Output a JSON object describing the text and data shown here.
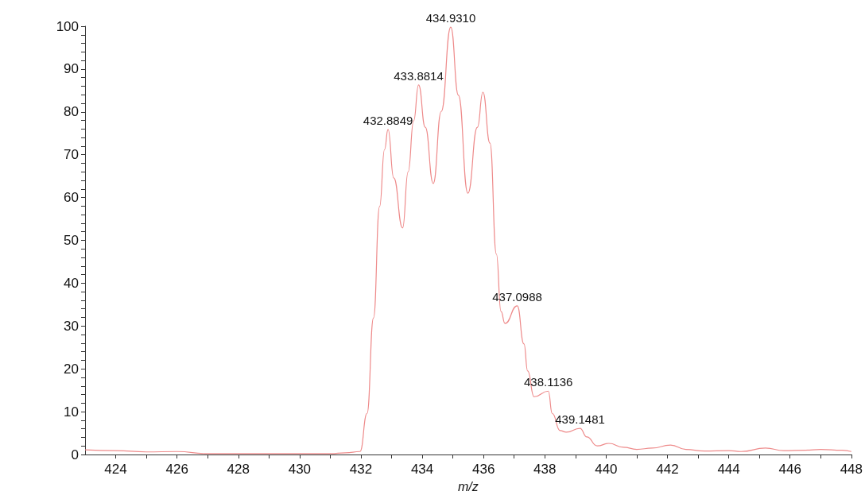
{
  "chart_data": {
    "type": "line",
    "xlabel": "m/z",
    "color": "#ee8a8a",
    "marker": "none",
    "line_style": "solid",
    "x": [
      423,
      424,
      425,
      426,
      427,
      428,
      429,
      430,
      431,
      431.5,
      431.97,
      432.2,
      432.41,
      432.61,
      432.77,
      432.8849,
      433.07,
      433.36,
      433.54,
      433.72,
      433.8814,
      434.1,
      434.36,
      434.62,
      434.931,
      435.18,
      435.49,
      435.8,
      435.98,
      436.21,
      436.42,
      436.57,
      436.7,
      437.0988,
      437.32,
      437.44,
      437.65,
      438.1136,
      438.24,
      438.5,
      438.7,
      439.1481,
      439.37,
      439.71,
      440.09,
      440.56,
      441,
      441.5,
      442.1,
      442.6,
      443.2,
      444,
      444.4,
      445.2,
      445.8,
      446.5,
      447,
      447.7,
      448
    ],
    "values": [
      1.1,
      0.9,
      0.6,
      0.7,
      0.2,
      0.2,
      0.2,
      0.2,
      0.2,
      0.4,
      0.7,
      9.6,
      31.9,
      57.9,
      71.2,
      75.9,
      64.6,
      52.9,
      66,
      77.9,
      86.3,
      76.4,
      63.3,
      80.1,
      99.8,
      83.9,
      61,
      76.4,
      84.6,
      72.7,
      46.8,
      33.4,
      30.6,
      34.7,
      25.8,
      19.5,
      13.5,
      14.8,
      9.6,
      5.6,
      5.2,
      6.1,
      4.1,
      2,
      2.6,
      1.7,
      1.2,
      1.5,
      2.2,
      1.2,
      0.8,
      0.9,
      0.7,
      1.5,
      0.9,
      1,
      1.2,
      1,
      0.7
    ],
    "xlim": [
      423,
      448
    ],
    "xticks": [
      424,
      {
        "value": 425,
        "label": null
      },
      426,
      {
        "value": 427,
        "label": null
      },
      428,
      {
        "value": 429,
        "label": null
      },
      430,
      {
        "value": 431,
        "label": null
      },
      432,
      {
        "value": 433,
        "label": null
      },
      434,
      {
        "value": 435,
        "label": null
      },
      436,
      {
        "value": 437,
        "label": null
      },
      438,
      {
        "value": 439,
        "label": null
      },
      440,
      {
        "value": 441,
        "label": null
      },
      442,
      {
        "value": 443,
        "label": null
      },
      444,
      {
        "value": 445,
        "label": null
      },
      446,
      {
        "value": 447,
        "label": null
      },
      448
    ],
    "ylim": [
      0,
      100
    ],
    "yticks": [
      0,
      {
        "value": 2,
        "label": null
      },
      {
        "value": 4,
        "label": null
      },
      {
        "value": 6,
        "label": null
      },
      {
        "value": 8,
        "label": null
      },
      10,
      {
        "value": 12,
        "label": null
      },
      {
        "value": 14,
        "label": null
      },
      {
        "value": 16,
        "label": null
      },
      {
        "value": 18,
        "label": null
      },
      20,
      {
        "value": 22,
        "label": null
      },
      {
        "value": 24,
        "label": null
      },
      {
        "value": 26,
        "label": null
      },
      {
        "value": 28,
        "label": null
      },
      30,
      {
        "value": 32,
        "label": null
      },
      {
        "value": 34,
        "label": null
      },
      {
        "value": 36,
        "label": null
      },
      {
        "value": 38,
        "label": null
      },
      40,
      {
        "value": 42,
        "label": null
      },
      {
        "value": 44,
        "label": null
      },
      {
        "value": 46,
        "label": null
      },
      {
        "value": 48,
        "label": null
      },
      50,
      {
        "value": 52,
        "label": null
      },
      {
        "value": 54,
        "label": null
      },
      {
        "value": 56,
        "label": null
      },
      {
        "value": 58,
        "label": null
      },
      60,
      {
        "value": 62,
        "label": null
      },
      {
        "value": 64,
        "label": null
      },
      {
        "value": 66,
        "label": null
      },
      {
        "value": 68,
        "label": null
      },
      70,
      {
        "value": 72,
        "label": null
      },
      {
        "value": 74,
        "label": null
      },
      {
        "value": 76,
        "label": null
      },
      {
        "value": 78,
        "label": null
      },
      80,
      {
        "value": 82,
        "label": null
      },
      {
        "value": 84,
        "label": null
      },
      {
        "value": 86,
        "label": null
      },
      {
        "value": 88,
        "label": null
      },
      90,
      {
        "value": 92,
        "label": null
      },
      {
        "value": 94,
        "label": null
      },
      {
        "value": 96,
        "label": null
      },
      {
        "value": 98,
        "label": null
      },
      100
    ],
    "annotations": [
      {
        "text": "432.8849",
        "x": 432.8849,
        "y": 75.9
      },
      {
        "text": "433.8814",
        "x": 433.8814,
        "y": 86.3
      },
      {
        "text": "434.9310",
        "x": 434.931,
        "y": 99.8
      },
      {
        "text": "437.0988",
        "x": 437.0988,
        "y": 34.7
      },
      {
        "text": "438.1136",
        "x": 438.1136,
        "y": 14.8
      },
      {
        "text": "439.1481",
        "x": 439.1481,
        "y": 6.1
      }
    ]
  }
}
